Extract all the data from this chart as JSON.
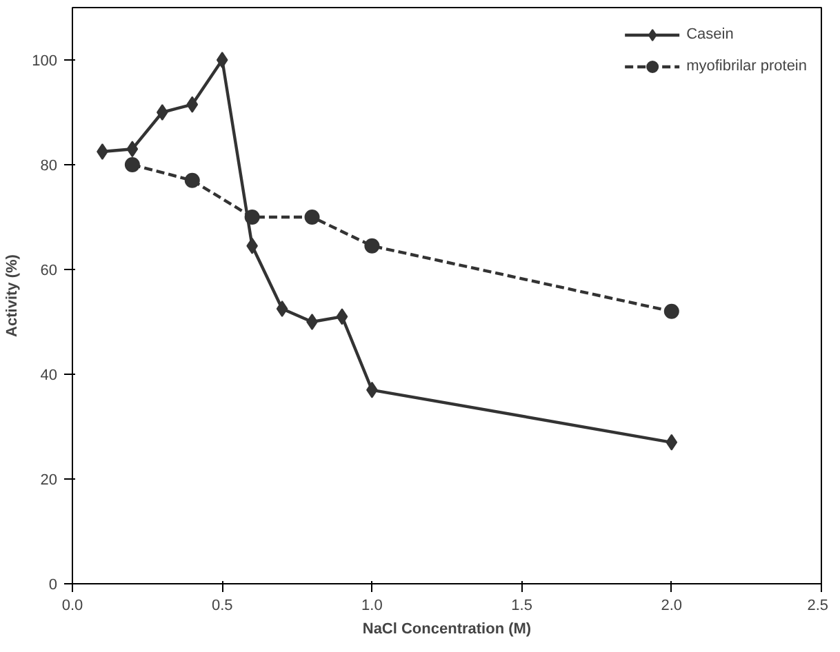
{
  "chart_data": {
    "type": "line",
    "xlabel": "NaCl Concentration (M)",
    "ylabel": "Activity (%)",
    "xlim": [
      0,
      2.5
    ],
    "xticks": [
      {
        "value": 0,
        "label": "0.0"
      },
      {
        "value": 0.5,
        "label": "0.5"
      },
      {
        "value": 1,
        "label": "1.0"
      },
      {
        "value": 1.5,
        "label": "1.5"
      },
      {
        "value": 2,
        "label": "2.0"
      },
      {
        "value": 2.5,
        "label": "2.5"
      }
    ],
    "ylim": [
      0,
      110
    ],
    "yticks": [
      0,
      20,
      40,
      60,
      80,
      100
    ],
    "grid": false,
    "legend": "top right",
    "series": [
      {
        "name": "Casein",
        "color": "#333333",
        "marker": "diamond",
        "line_style": "solid",
        "x": [
          0.1,
          0.2,
          0.3,
          0.4,
          0.5,
          0.6,
          0.7,
          0.8,
          0.9,
          1.0,
          2.0
        ],
        "values": [
          82.5,
          83,
          90,
          91.5,
          100,
          64.5,
          52.5,
          50,
          51,
          37,
          27
        ]
      },
      {
        "name": "myofibrilar protein",
        "color": "#333333",
        "marker": "circle",
        "line_style": "dashed",
        "x": [
          0.2,
          0.4,
          0.6,
          0.8,
          1.0,
          2.0
        ],
        "values": [
          80,
          77,
          70,
          70,
          64.5,
          52
        ]
      }
    ]
  }
}
